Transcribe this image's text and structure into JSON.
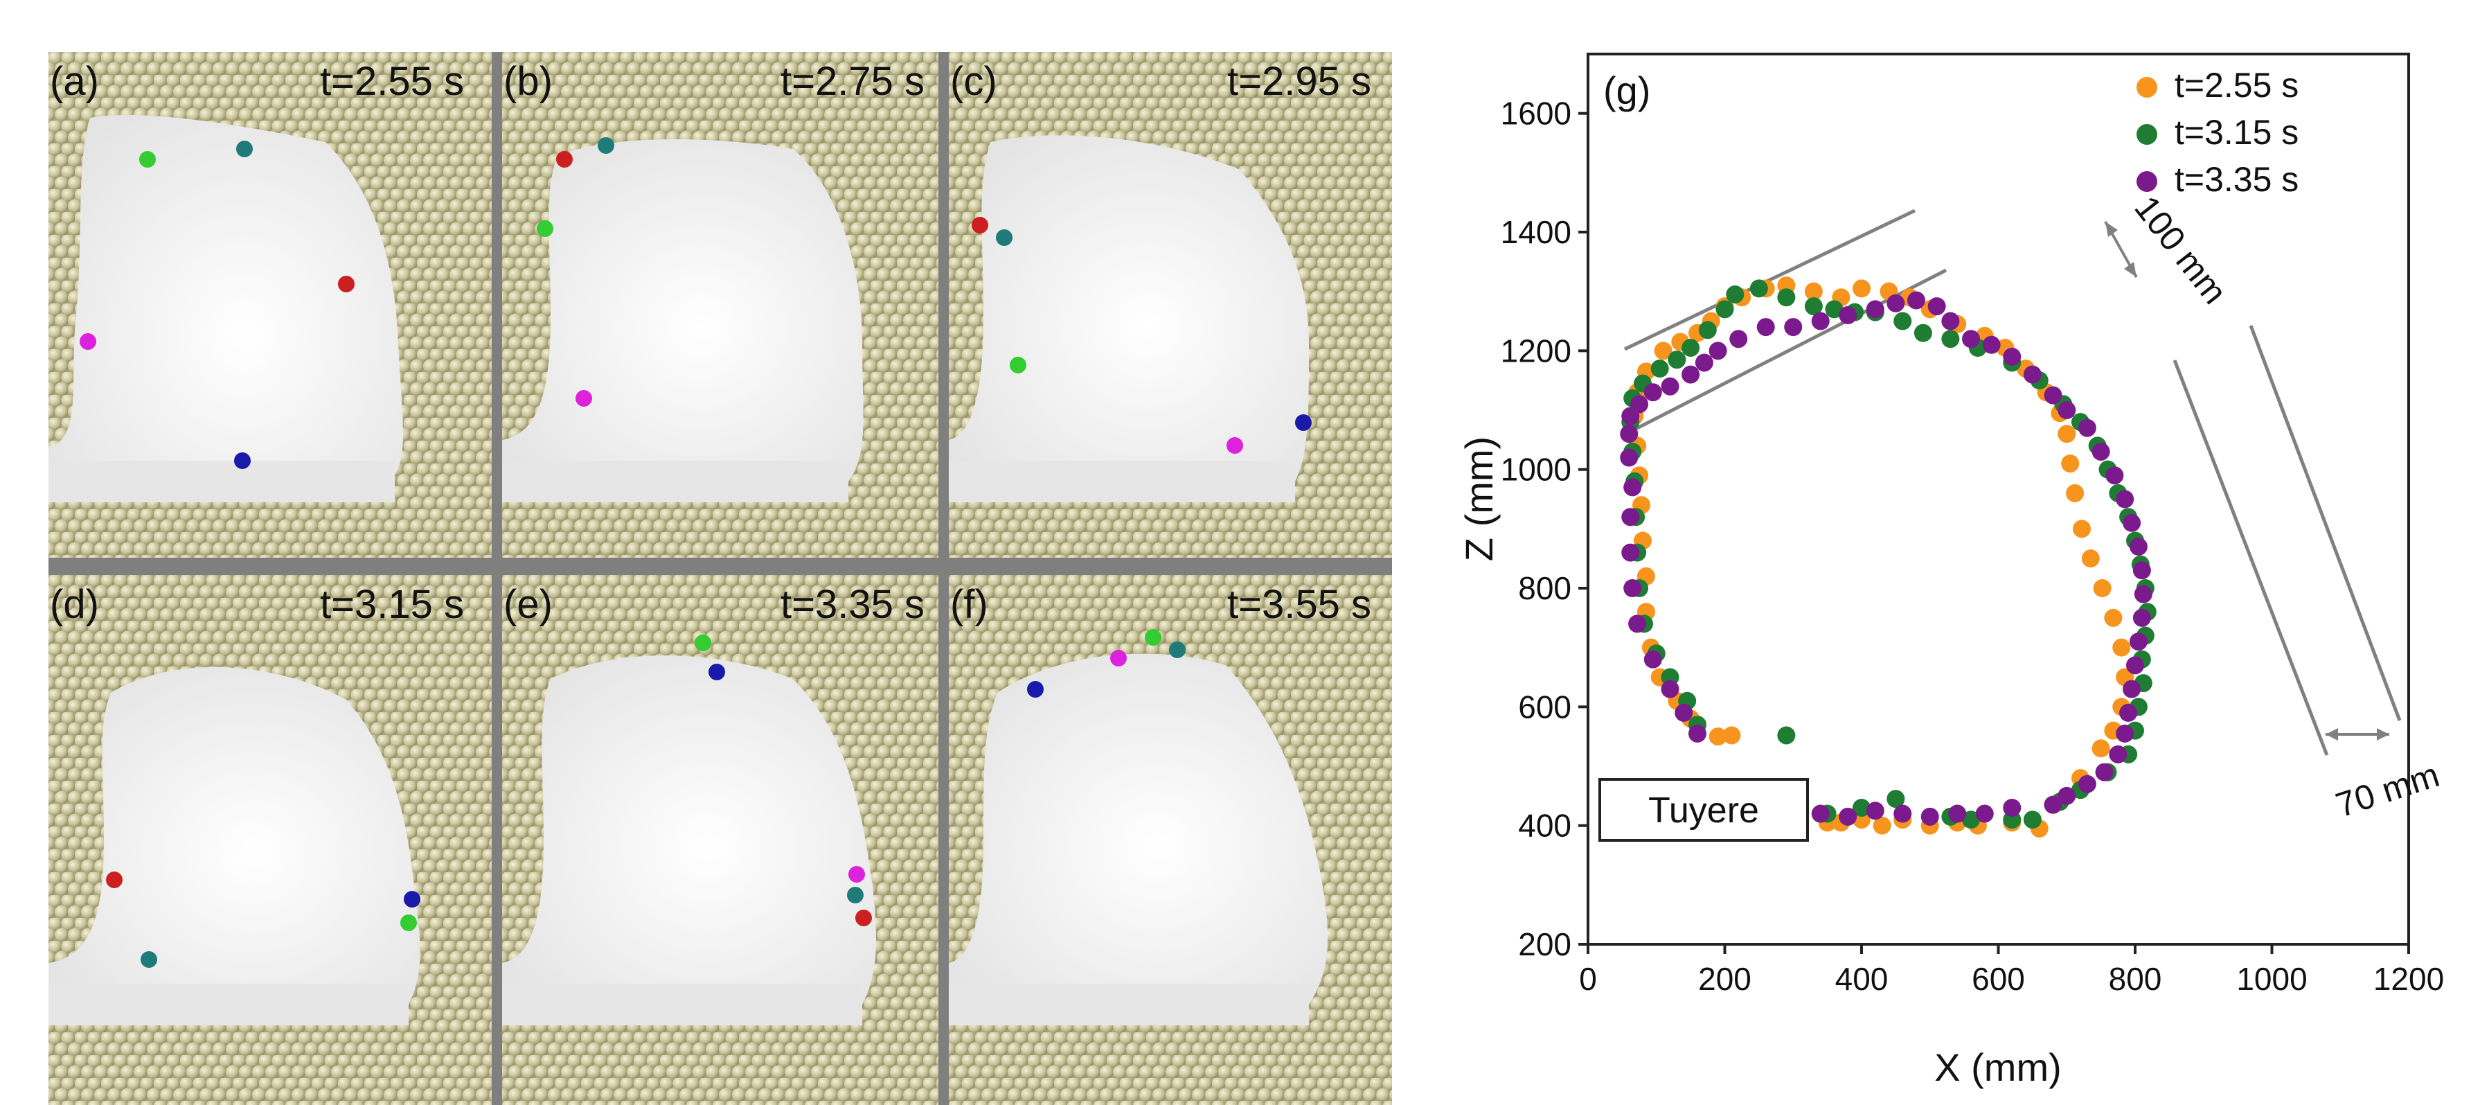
{
  "panels": [
    {
      "id": "a",
      "label": "(a)",
      "time": "t=2.55 s"
    },
    {
      "id": "b",
      "label": "(b)",
      "time": "t=2.75 s"
    },
    {
      "id": "c",
      "label": "(c)",
      "time": "t=2.95 s"
    },
    {
      "id": "d",
      "label": "(d)",
      "time": "t=3.15 s"
    },
    {
      "id": "e",
      "label": "(e)",
      "time": "t=3.35 s"
    },
    {
      "id": "f",
      "label": "(f)",
      "time": "t=3.55 s"
    }
  ],
  "colors": {
    "particle": "#c8c39a",
    "particle_edge": "#8f8a60",
    "void": "#eeeeee",
    "divider": "#7f7f7f",
    "tracer_green": "#33cc33",
    "tracer_teal": "#1f7a7a",
    "tracer_red": "#cc1f1f",
    "tracer_magenta": "#dd22dd",
    "tracer_blue": "#1a1aaa",
    "series_orange": "#f7941d",
    "series_green": "#1e7d32",
    "series_purple": "#7b1a8c",
    "guide": "#808080"
  },
  "chart_data": {
    "type": "scatter",
    "panel_label": "(g)",
    "xlabel": "X (mm)",
    "ylabel": "Z (mm)",
    "xlim": [
      0,
      1200
    ],
    "ylim": [
      200,
      1700
    ],
    "xticks": [
      0,
      200,
      400,
      600,
      800,
      1000,
      1200
    ],
    "yticks": [
      200,
      400,
      600,
      800,
      1000,
      1200,
      1400,
      1600
    ],
    "legend_position": "top-right",
    "grid": false,
    "annotations": {
      "box_label": "Tuyere",
      "dim_top": "100 mm",
      "dim_right": "70 mm"
    },
    "series": [
      {
        "name": "t=2.55 s",
        "color": "#f7941d",
        "points": [
          [
            190,
            550
          ],
          [
            210,
            552
          ],
          [
            150,
            580
          ],
          [
            130,
            610
          ],
          [
            105,
            650
          ],
          [
            92,
            700
          ],
          [
            85,
            760
          ],
          [
            85,
            820
          ],
          [
            80,
            880
          ],
          [
            78,
            940
          ],
          [
            75,
            990
          ],
          [
            72,
            1040
          ],
          [
            68,
            1090
          ],
          [
            72,
            1130
          ],
          [
            85,
            1165
          ],
          [
            110,
            1200
          ],
          [
            135,
            1215
          ],
          [
            160,
            1230
          ],
          [
            180,
            1250
          ],
          [
            200,
            1275
          ],
          [
            225,
            1290
          ],
          [
            260,
            1305
          ],
          [
            290,
            1310
          ],
          [
            330,
            1300
          ],
          [
            370,
            1290
          ],
          [
            400,
            1305
          ],
          [
            440,
            1300
          ],
          [
            470,
            1290
          ],
          [
            500,
            1270
          ],
          [
            540,
            1245
          ],
          [
            580,
            1225
          ],
          [
            610,
            1205
          ],
          [
            640,
            1170
          ],
          [
            670,
            1130
          ],
          [
            690,
            1095
          ],
          [
            700,
            1060
          ],
          [
            705,
            1010
          ],
          [
            712,
            960
          ],
          [
            722,
            900
          ],
          [
            735,
            850
          ],
          [
            752,
            800
          ],
          [
            768,
            750
          ],
          [
            780,
            700
          ],
          [
            785,
            650
          ],
          [
            780,
            600
          ],
          [
            768,
            560
          ],
          [
            750,
            530
          ],
          [
            720,
            480
          ],
          [
            690,
            440
          ],
          [
            660,
            395
          ],
          [
            620,
            405
          ],
          [
            570,
            400
          ],
          [
            540,
            405
          ],
          [
            500,
            400
          ],
          [
            460,
            410
          ],
          [
            430,
            400
          ],
          [
            400,
            410
          ],
          [
            370,
            405
          ],
          [
            350,
            405
          ]
        ]
      },
      {
        "name": "t=3.15 s",
        "color": "#1e7d32",
        "points": [
          [
            290,
            552
          ],
          [
            160,
            570
          ],
          [
            145,
            610
          ],
          [
            120,
            650
          ],
          [
            100,
            690
          ],
          [
            82,
            740
          ],
          [
            75,
            800
          ],
          [
            72,
            860
          ],
          [
            70,
            920
          ],
          [
            68,
            980
          ],
          [
            65,
            1030
          ],
          [
            62,
            1080
          ],
          [
            65,
            1120
          ],
          [
            80,
            1145
          ],
          [
            105,
            1170
          ],
          [
            130,
            1185
          ],
          [
            150,
            1205
          ],
          [
            175,
            1235
          ],
          [
            200,
            1270
          ],
          [
            215,
            1295
          ],
          [
            250,
            1305
          ],
          [
            290,
            1290
          ],
          [
            330,
            1275
          ],
          [
            360,
            1270
          ],
          [
            390,
            1265
          ],
          [
            420,
            1265
          ],
          [
            460,
            1250
          ],
          [
            490,
            1230
          ],
          [
            530,
            1220
          ],
          [
            570,
            1205
          ],
          [
            620,
            1180
          ],
          [
            660,
            1150
          ],
          [
            695,
            1110
          ],
          [
            720,
            1080
          ],
          [
            745,
            1040
          ],
          [
            760,
            1000
          ],
          [
            775,
            960
          ],
          [
            790,
            920
          ],
          [
            800,
            880
          ],
          [
            808,
            840
          ],
          [
            815,
            800
          ],
          [
            818,
            760
          ],
          [
            815,
            720
          ],
          [
            810,
            680
          ],
          [
            812,
            640
          ],
          [
            805,
            600
          ],
          [
            800,
            560
          ],
          [
            790,
            520
          ],
          [
            760,
            490
          ],
          [
            720,
            460
          ],
          [
            690,
            440
          ],
          [
            650,
            410
          ],
          [
            620,
            410
          ],
          [
            560,
            410
          ],
          [
            530,
            415
          ],
          [
            450,
            445
          ],
          [
            400,
            430
          ],
          [
            350,
            420
          ],
          [
            300,
            420
          ]
        ]
      },
      {
        "name": "t=3.35 s",
        "color": "#7b1a8c",
        "points": [
          [
            160,
            555
          ],
          [
            140,
            590
          ],
          [
            120,
            630
          ],
          [
            95,
            680
          ],
          [
            72,
            740
          ],
          [
            65,
            800
          ],
          [
            62,
            860
          ],
          [
            62,
            920
          ],
          [
            65,
            970
          ],
          [
            60,
            1020
          ],
          [
            60,
            1060
          ],
          [
            62,
            1090
          ],
          [
            75,
            1110
          ],
          [
            95,
            1130
          ],
          [
            120,
            1140
          ],
          [
            150,
            1160
          ],
          [
            170,
            1180
          ],
          [
            190,
            1200
          ],
          [
            220,
            1220
          ],
          [
            260,
            1240
          ],
          [
            300,
            1240
          ],
          [
            340,
            1250
          ],
          [
            380,
            1260
          ],
          [
            420,
            1270
          ],
          [
            450,
            1280
          ],
          [
            480,
            1285
          ],
          [
            510,
            1275
          ],
          [
            530,
            1250
          ],
          [
            560,
            1220
          ],
          [
            590,
            1210
          ],
          [
            620,
            1190
          ],
          [
            650,
            1160
          ],
          [
            680,
            1125
          ],
          [
            700,
            1100
          ],
          [
            730,
            1070
          ],
          [
            750,
            1030
          ],
          [
            770,
            990
          ],
          [
            785,
            950
          ],
          [
            795,
            910
          ],
          [
            805,
            870
          ],
          [
            810,
            830
          ],
          [
            812,
            790
          ],
          [
            810,
            750
          ],
          [
            805,
            710
          ],
          [
            800,
            670
          ],
          [
            795,
            630
          ],
          [
            790,
            590
          ],
          [
            785,
            555
          ],
          [
            775,
            520
          ],
          [
            755,
            490
          ],
          [
            730,
            470
          ],
          [
            700,
            450
          ],
          [
            680,
            435
          ],
          [
            620,
            430
          ],
          [
            580,
            420
          ],
          [
            540,
            420
          ],
          [
            500,
            415
          ],
          [
            460,
            420
          ],
          [
            420,
            425
          ],
          [
            380,
            415
          ],
          [
            340,
            420
          ],
          [
            280,
            425
          ]
        ]
      }
    ]
  }
}
